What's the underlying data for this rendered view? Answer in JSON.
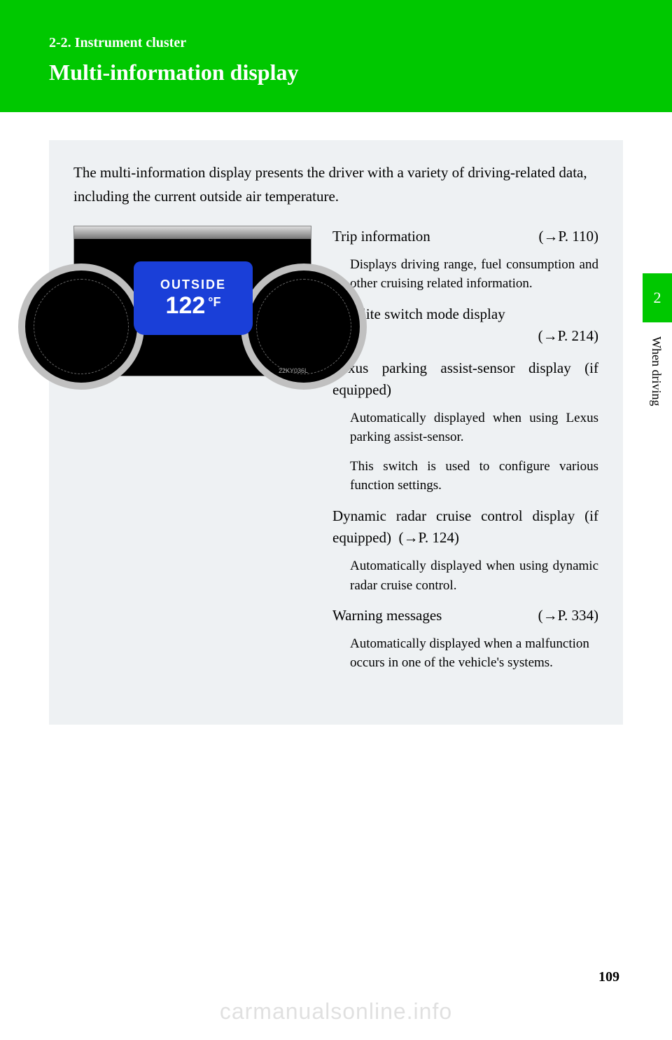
{
  "header": {
    "section_label": "2-2.  Instrument cluster",
    "title": "Multi-information display",
    "bg_color": "#00c800",
    "text_color": "#ffffff"
  },
  "content": {
    "intro": "The multi-information display presents the driver with a variety of driving-related data, including the current outside air temperature.",
    "bg_color": "#eef1f3"
  },
  "figure": {
    "panel_label": "OUTSIDE",
    "panel_value": "122",
    "panel_unit": "°F",
    "panel_bg": "#1a3fd8",
    "panel_text": "#ffffff",
    "image_code": "22KY036L"
  },
  "items": [
    {
      "title": "Trip information",
      "ref": "(→P. 110)",
      "subs": [
        "Displays driving range, fuel consumption and other cruising related information."
      ]
    },
    {
      "title": "Satellite switch mode display",
      "ref": "(→P. 214)",
      "ref_newline": true,
      "subs": []
    },
    {
      "title": "Lexus parking assist-sensor display (if equipped)",
      "ref": "",
      "subs": [
        "Automatically displayed when using Lexus parking assist-sensor.",
        "This switch is used to configure various function settings."
      ]
    },
    {
      "title": "Dynamic radar cruise control display (if equipped)",
      "ref": "(→P. 124)",
      "inline_ref": true,
      "subs": [
        "Automatically displayed when using dynamic radar cruise control."
      ]
    },
    {
      "title": "Warning messages",
      "ref": "(→P. 334)",
      "subs": [
        "Automatically displayed when a malfunction occurs in one of the vehicle's systems."
      ]
    }
  ],
  "side": {
    "tab_number": "2",
    "section_name": "When driving",
    "tab_bg": "#00c800"
  },
  "page_number": "109",
  "watermark": "carmanualsonline.info"
}
